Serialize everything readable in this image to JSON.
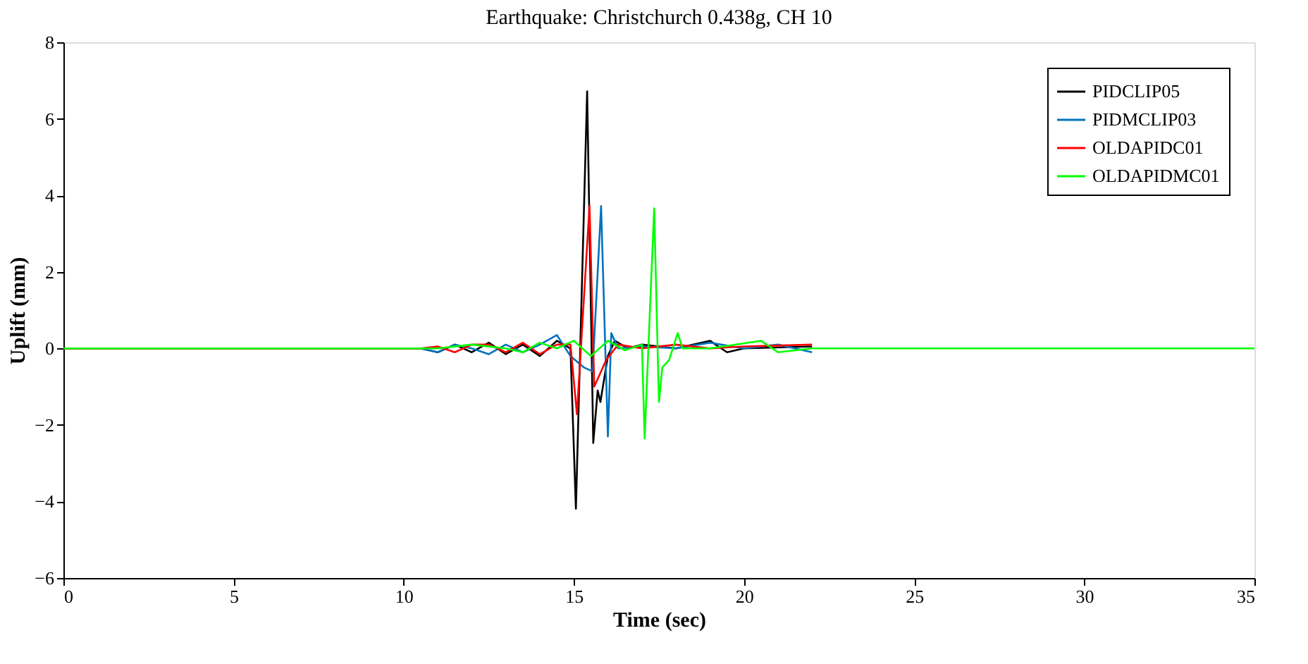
{
  "chart_data": {
    "type": "line",
    "title": "Earthquake: Christchurch 0.438g, CH 10",
    "xlabel": "Time (sec)",
    "ylabel": "Uplift (mm)",
    "xlim": [
      0,
      35
    ],
    "xticks": [
      0,
      5,
      10,
      15,
      20,
      25,
      30,
      35
    ],
    "ylim": [
      -6,
      8
    ],
    "yticks": [
      -6,
      -4,
      -2,
      0,
      2,
      4,
      6,
      8
    ],
    "grid": false,
    "legend": "top right",
    "line_style": "solid",
    "series": [
      {
        "name": "PIDCLIP05",
        "color": "#000000",
        "x": [
          0,
          10.5,
          11,
          11.5,
          12,
          12.5,
          13,
          13.5,
          14,
          14.5,
          14.9,
          15.06,
          15.39,
          15.57,
          15.7,
          15.78,
          16.0,
          16.2,
          16.6,
          17,
          18,
          19,
          19.5,
          20,
          22
        ],
        "values": [
          0,
          0,
          -0.1,
          0.1,
          -0.1,
          0.15,
          -0.15,
          0.1,
          -0.2,
          0.2,
          0,
          -4.19,
          6.72,
          -2.47,
          -1.1,
          -1.4,
          -0.2,
          0.2,
          0,
          0.1,
          0,
          0.2,
          -0.1,
          0,
          0.05
        ]
      },
      {
        "name": "PIDMCLIP03",
        "color": "#0072bd",
        "x": [
          0,
          10.5,
          11,
          11.5,
          12,
          12.5,
          13,
          13.5,
          14,
          14.5,
          14.9,
          15.3,
          15.55,
          15.8,
          16.0,
          16.1,
          16.3,
          17,
          18,
          19,
          20,
          21,
          22
        ],
        "values": [
          0,
          0,
          -0.1,
          0.1,
          0,
          -0.15,
          0.1,
          -0.1,
          0.1,
          0.35,
          -0.2,
          -0.5,
          -0.6,
          3.72,
          -2.3,
          0.4,
          0,
          0.05,
          0,
          0.15,
          0,
          0.1,
          -0.1
        ]
      },
      {
        "name": "OLDAPIDC01",
        "color": "#ff0000",
        "x": [
          0,
          10.5,
          11,
          11.5,
          12,
          12.5,
          13,
          13.5,
          14,
          14.5,
          14.9,
          15.09,
          15.46,
          15.6,
          15.75,
          15.95,
          16.3,
          17,
          18,
          19,
          20,
          22
        ],
        "values": [
          0,
          0,
          0.05,
          -0.1,
          0.1,
          0.1,
          -0.1,
          0.15,
          -0.15,
          0.1,
          0.1,
          -1.72,
          3.73,
          -1.0,
          -0.7,
          -0.3,
          0.1,
          0,
          0.1,
          0,
          0.05,
          0.1
        ]
      },
      {
        "name": "OLDAPIDMC01",
        "color": "#00ff00",
        "x": [
          0,
          11,
          12,
          13,
          13.5,
          14,
          14.5,
          15,
          15.5,
          16,
          16.5,
          17.0,
          17.08,
          17.36,
          17.5,
          17.6,
          17.8,
          18.05,
          18.2,
          19,
          20.5,
          21,
          22,
          35
        ],
        "values": [
          0,
          0,
          0.1,
          0,
          -0.1,
          0.15,
          0,
          0.2,
          -0.2,
          0.2,
          -0.05,
          0.1,
          -2.35,
          3.66,
          -1.4,
          -0.5,
          -0.3,
          0.4,
          0,
          0,
          0.2,
          -0.1,
          0,
          0
        ]
      }
    ]
  }
}
